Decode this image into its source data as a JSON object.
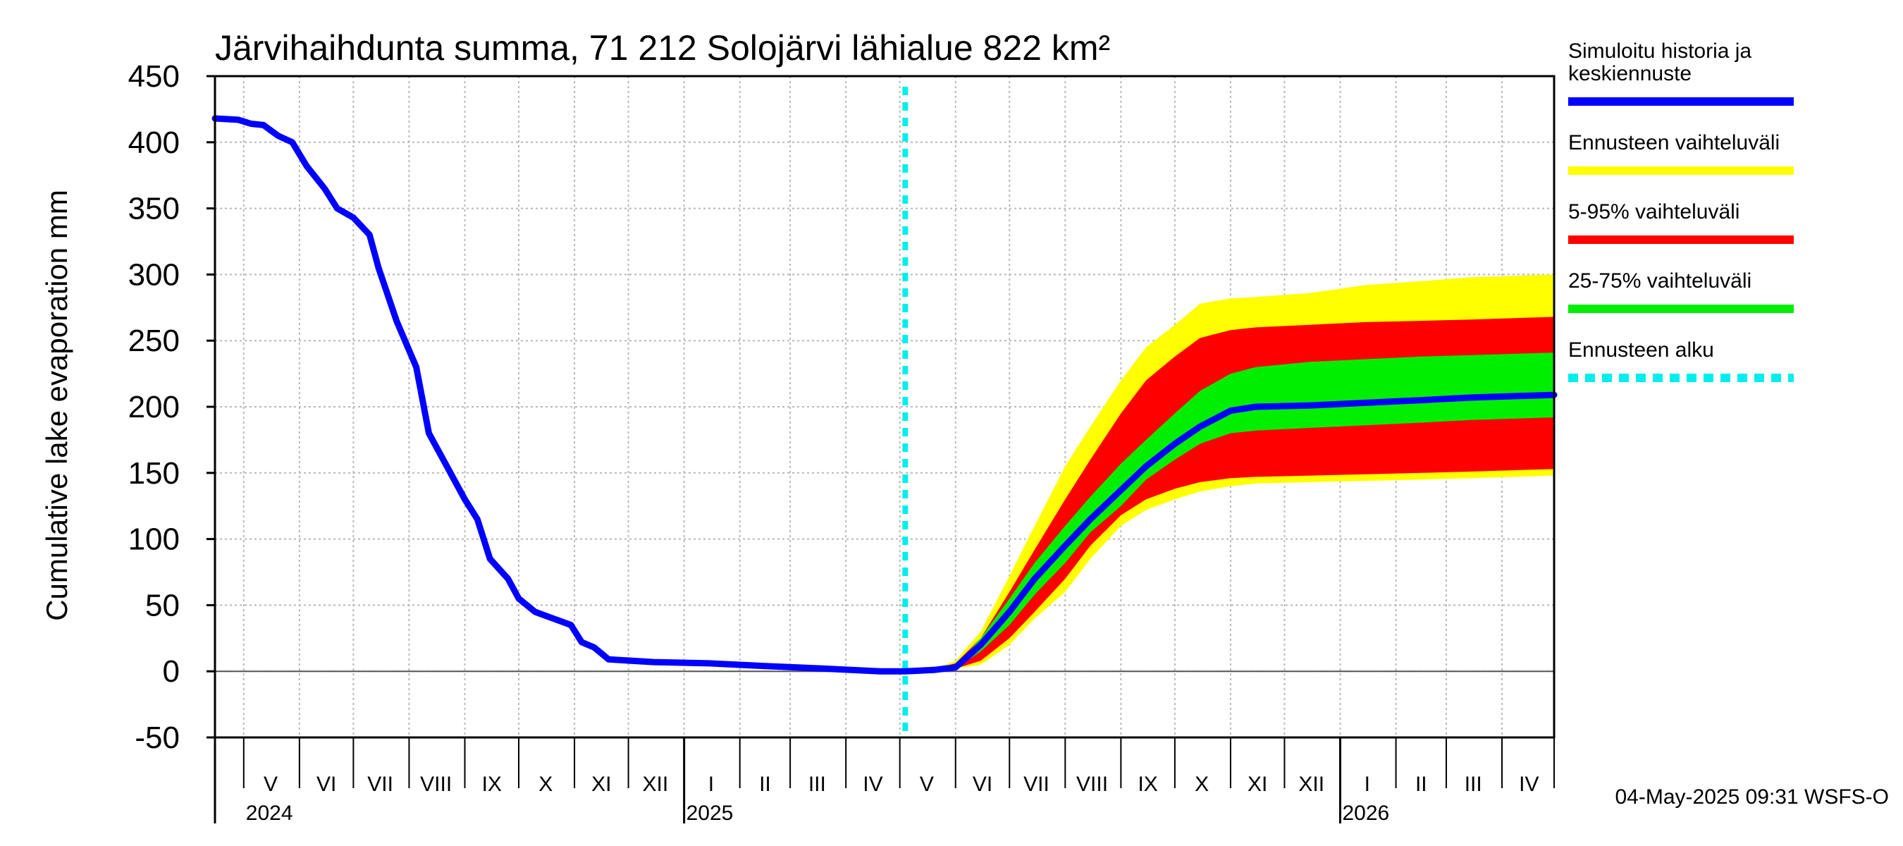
{
  "chart_data": {
    "type": "area",
    "title": "Järvihaihdunta summa, 71 212 Solojärvi lähialue 822 km²",
    "ylabel": "Cumulative lake evaporation   mm",
    "xlabel": "",
    "ylim": [
      -50,
      450
    ],
    "yticks": [
      -50,
      0,
      50,
      100,
      150,
      200,
      250,
      300,
      350,
      400,
      450
    ],
    "grid": true,
    "x_start": "2024-04-15",
    "x_end": "2026-04-30",
    "forecast_start": "2025-05-04",
    "month_labels": [
      {
        "label": "V",
        "date": "2024-05-16"
      },
      {
        "label": "VI",
        "date": "2024-06-16"
      },
      {
        "label": "VII",
        "date": "2024-07-16"
      },
      {
        "label": "VIII",
        "date": "2024-08-16"
      },
      {
        "label": "IX",
        "date": "2024-09-16"
      },
      {
        "label": "X",
        "date": "2024-10-16"
      },
      {
        "label": "XI",
        "date": "2024-11-16"
      },
      {
        "label": "XII",
        "date": "2024-12-16"
      },
      {
        "label": "I",
        "date": "2025-01-16"
      },
      {
        "label": "II",
        "date": "2025-02-15"
      },
      {
        "label": "III",
        "date": "2025-03-16"
      },
      {
        "label": "IV",
        "date": "2025-04-16"
      },
      {
        "label": "V",
        "date": "2025-05-16"
      },
      {
        "label": "VI",
        "date": "2025-06-16"
      },
      {
        "label": "VII",
        "date": "2025-07-16"
      },
      {
        "label": "VIII",
        "date": "2025-08-16"
      },
      {
        "label": "IX",
        "date": "2025-09-16"
      },
      {
        "label": "X",
        "date": "2025-10-16"
      },
      {
        "label": "XI",
        "date": "2025-11-16"
      },
      {
        "label": "XII",
        "date": "2025-12-16"
      },
      {
        "label": "I",
        "date": "2026-01-16"
      },
      {
        "label": "II",
        "date": "2026-02-15"
      },
      {
        "label": "III",
        "date": "2026-03-16"
      },
      {
        "label": "IV",
        "date": "2026-04-16"
      }
    ],
    "year_labels": [
      {
        "label": "2024",
        "date": "2024-05-01"
      },
      {
        "label": "2025",
        "date": "2025-01-01"
      },
      {
        "label": "2026",
        "date": "2026-01-01"
      }
    ],
    "series": [
      {
        "name": "Simuloitu historia ja keskiennuste",
        "color": "#0000ff",
        "points": [
          [
            "2024-04-15",
            418
          ],
          [
            "2024-04-28",
            417
          ],
          [
            "2024-05-05",
            414
          ],
          [
            "2024-05-12",
            413
          ],
          [
            "2024-05-20",
            405
          ],
          [
            "2024-05-28",
            400
          ],
          [
            "2024-06-05",
            382
          ],
          [
            "2024-06-15",
            365
          ],
          [
            "2024-06-22",
            350
          ],
          [
            "2024-07-01",
            343
          ],
          [
            "2024-07-10",
            330
          ],
          [
            "2024-07-15",
            305
          ],
          [
            "2024-07-25",
            265
          ],
          [
            "2024-08-05",
            230
          ],
          [
            "2024-08-12",
            180
          ],
          [
            "2024-08-22",
            155
          ],
          [
            "2024-09-01",
            130
          ],
          [
            "2024-09-08",
            115
          ],
          [
            "2024-09-15",
            85
          ],
          [
            "2024-09-25",
            70
          ],
          [
            "2024-10-01",
            55
          ],
          [
            "2024-10-10",
            45
          ],
          [
            "2024-10-20",
            40
          ],
          [
            "2024-10-30",
            35
          ],
          [
            "2024-11-05",
            22
          ],
          [
            "2024-11-12",
            18
          ],
          [
            "2024-11-20",
            9
          ],
          [
            "2024-12-15",
            7
          ],
          [
            "2025-01-15",
            6
          ],
          [
            "2025-02-15",
            4
          ],
          [
            "2025-03-20",
            2
          ],
          [
            "2025-04-20",
            0
          ],
          [
            "2025-05-04",
            0
          ],
          [
            "2025-05-20",
            1
          ],
          [
            "2025-06-01",
            3
          ],
          [
            "2025-06-15",
            20
          ],
          [
            "2025-07-01",
            45
          ],
          [
            "2025-07-15",
            70
          ],
          [
            "2025-08-01",
            95
          ],
          [
            "2025-08-15",
            115
          ],
          [
            "2025-09-01",
            137
          ],
          [
            "2025-09-15",
            155
          ],
          [
            "2025-10-01",
            172
          ],
          [
            "2025-10-15",
            185
          ],
          [
            "2025-11-01",
            197
          ],
          [
            "2025-11-15",
            200
          ],
          [
            "2025-12-15",
            201
          ],
          [
            "2026-01-15",
            203
          ],
          [
            "2026-02-15",
            205
          ],
          [
            "2026-03-15",
            207
          ],
          [
            "2026-04-30",
            209
          ]
        ]
      }
    ],
    "bands": [
      {
        "name": "Ennusteen vaihteluväli",
        "color": "#ffff00",
        "points": [
          [
            "2025-05-04",
            0,
            0
          ],
          [
            "2025-05-20",
            1,
            2
          ],
          [
            "2025-06-01",
            2,
            8
          ],
          [
            "2025-06-15",
            5,
            30
          ],
          [
            "2025-07-01",
            20,
            72
          ],
          [
            "2025-07-15",
            40,
            110
          ],
          [
            "2025-08-01",
            60,
            155
          ],
          [
            "2025-08-15",
            85,
            185
          ],
          [
            "2025-09-01",
            110,
            220
          ],
          [
            "2025-09-15",
            122,
            245
          ],
          [
            "2025-10-01",
            130,
            262
          ],
          [
            "2025-10-15",
            136,
            278
          ],
          [
            "2025-11-01",
            140,
            282
          ],
          [
            "2025-11-15",
            142,
            283
          ],
          [
            "2025-12-15",
            143,
            286
          ],
          [
            "2026-01-15",
            144,
            292
          ],
          [
            "2026-02-15",
            145,
            295
          ],
          [
            "2026-03-15",
            146,
            298
          ],
          [
            "2026-04-30",
            148,
            300
          ]
        ]
      },
      {
        "name": "5-95% vaihteluväli",
        "color": "#ff0000",
        "points": [
          [
            "2025-05-04",
            0,
            0
          ],
          [
            "2025-05-20",
            1,
            2
          ],
          [
            "2025-06-01",
            2,
            6
          ],
          [
            "2025-06-15",
            8,
            25
          ],
          [
            "2025-07-01",
            25,
            60
          ],
          [
            "2025-07-15",
            45,
            92
          ],
          [
            "2025-08-01",
            70,
            130
          ],
          [
            "2025-08-15",
            95,
            160
          ],
          [
            "2025-09-01",
            118,
            195
          ],
          [
            "2025-09-15",
            130,
            220
          ],
          [
            "2025-10-01",
            138,
            238
          ],
          [
            "2025-10-15",
            143,
            252
          ],
          [
            "2025-11-01",
            146,
            258
          ],
          [
            "2025-11-15",
            147,
            260
          ],
          [
            "2025-12-15",
            148,
            262
          ],
          [
            "2026-01-15",
            149,
            264
          ],
          [
            "2026-02-15",
            150,
            265
          ],
          [
            "2026-03-15",
            151,
            266
          ],
          [
            "2026-04-30",
            153,
            268
          ]
        ]
      },
      {
        "name": "25-75% vaihteluväli",
        "color": "#00ee00",
        "points": [
          [
            "2025-05-04",
            0,
            0
          ],
          [
            "2025-05-20",
            1,
            2
          ],
          [
            "2025-06-01",
            2,
            4
          ],
          [
            "2025-06-15",
            15,
            25
          ],
          [
            "2025-07-01",
            35,
            55
          ],
          [
            "2025-07-15",
            58,
            82
          ],
          [
            "2025-08-01",
            82,
            110
          ],
          [
            "2025-08-15",
            105,
            132
          ],
          [
            "2025-09-01",
            125,
            157
          ],
          [
            "2025-09-15",
            145,
            175
          ],
          [
            "2025-10-01",
            160,
            195
          ],
          [
            "2025-10-15",
            172,
            212
          ],
          [
            "2025-11-01",
            180,
            225
          ],
          [
            "2025-11-15",
            182,
            230
          ],
          [
            "2025-12-15",
            184,
            234
          ],
          [
            "2026-01-15",
            186,
            236
          ],
          [
            "2026-02-15",
            188,
            238
          ],
          [
            "2026-03-15",
            190,
            239
          ],
          [
            "2026-04-30",
            192,
            241
          ]
        ]
      }
    ],
    "legend": {
      "placement": "right",
      "entries": [
        {
          "label_lines": [
            "Simuloitu historia ja",
            "keskiennuste"
          ],
          "color": "#0000ff",
          "style": "solid"
        },
        {
          "label_lines": [
            "Ennusteen vaihteluväli"
          ],
          "color": "#ffff00",
          "style": "solid"
        },
        {
          "label_lines": [
            "5-95% vaihteluväli"
          ],
          "color": "#ff0000",
          "style": "solid"
        },
        {
          "label_lines": [
            "25-75% vaihteluväli"
          ],
          "color": "#00ee00",
          "style": "solid"
        },
        {
          "label_lines": [
            "Ennusteen alku"
          ],
          "color": "#00eeee",
          "style": "dashed"
        }
      ]
    },
    "footer": "04-May-2025 09:31 WSFS-O"
  }
}
